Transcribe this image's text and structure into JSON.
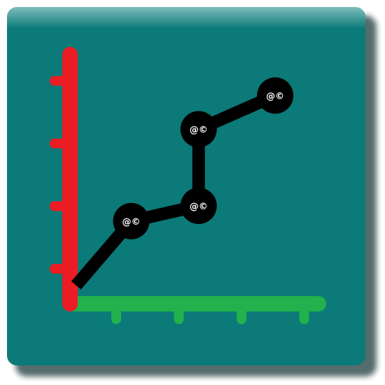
{
  "icon": {
    "name": "line-chart-app-icon",
    "colors": {
      "background": "#0b7a78",
      "background_highlight": "#6fb3b1",
      "shadow": "#1f3a3a",
      "y_axis": "#ec1c24",
      "x_axis": "#22b14c",
      "line": "#000000",
      "node": "#000000",
      "node_label": "#ffffff"
    }
  },
  "chart_data": {
    "type": "line",
    "title": "",
    "xlabel": "",
    "ylabel": "",
    "grid": false,
    "xlim": [
      0,
      4
    ],
    "ylim": [
      0,
      4
    ],
    "x_ticks": 4,
    "y_ticks": 4,
    "series": [
      {
        "points": [
          {
            "x": 0.1,
            "y": 0.3,
            "label": ""
          },
          {
            "x": 1.0,
            "y": 1.35,
            "label": "@©"
          },
          {
            "x": 2.1,
            "y": 1.6,
            "label": "@©"
          },
          {
            "x": 2.1,
            "y": 2.85,
            "label": "@©"
          },
          {
            "x": 3.35,
            "y": 3.4,
            "label": "@©"
          }
        ]
      }
    ]
  }
}
